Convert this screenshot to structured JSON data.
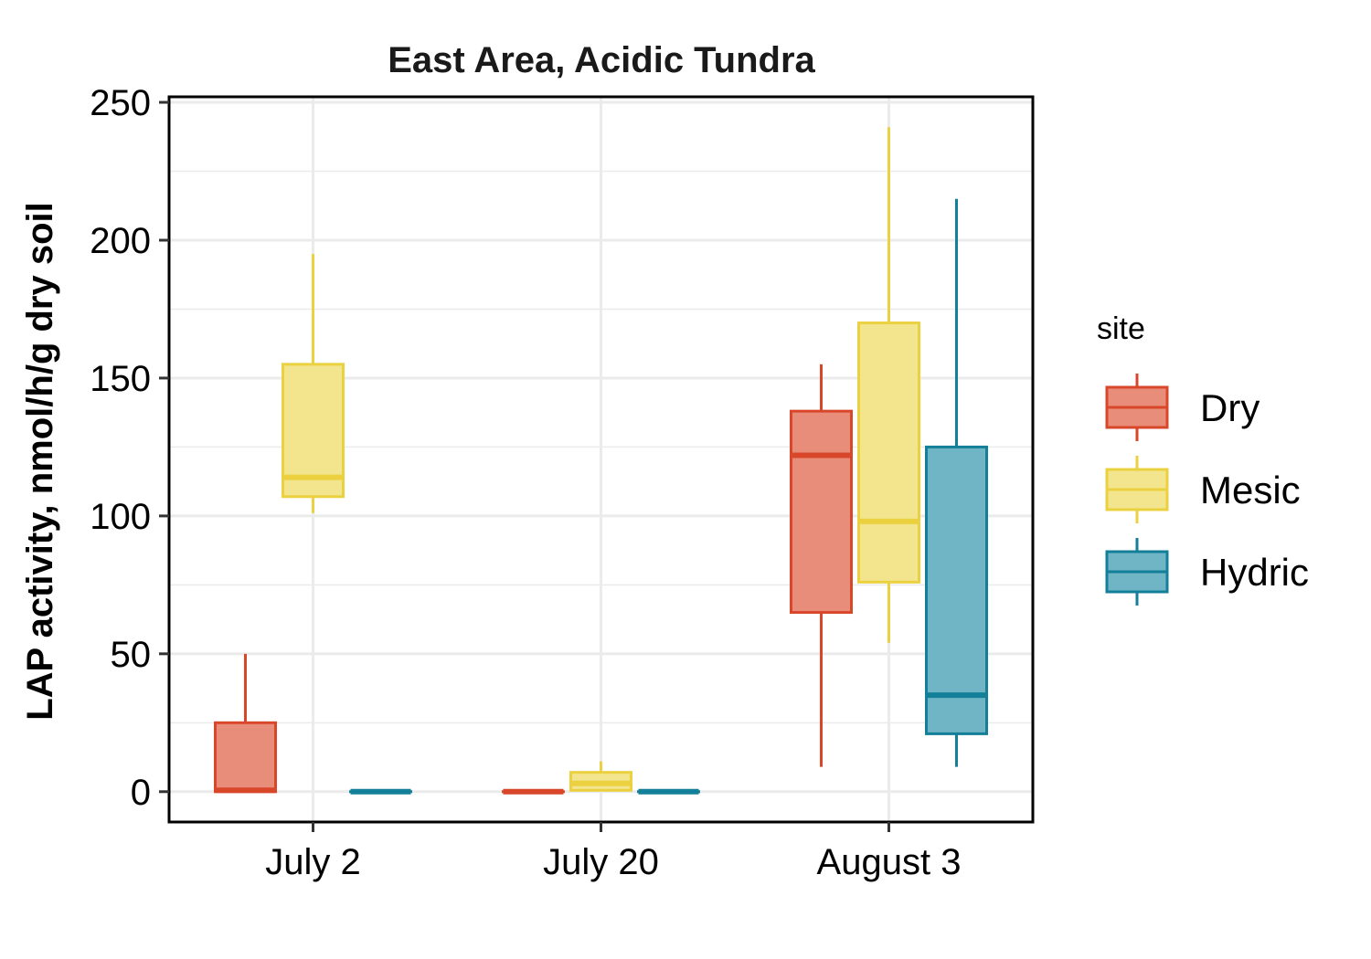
{
  "chart_data": {
    "type": "boxplot",
    "title": "East Area, Acidic Tundra",
    "xlabel": "",
    "ylabel": "LAP activity, nmol/h/g dry soil",
    "ylim": [
      -11,
      252
    ],
    "yticks": [
      0,
      50,
      100,
      150,
      200,
      250
    ],
    "grid": true,
    "legend_position": "right",
    "categories": [
      "July 2",
      "July 20",
      "August 3"
    ],
    "legend": {
      "title": "site",
      "entries": [
        "Dry",
        "Mesic",
        "Hydric"
      ]
    },
    "series": [
      {
        "name": "Dry",
        "color": "#d9472b",
        "fill": "#e98d7b",
        "boxes": [
          {
            "min": 0,
            "q1": 0,
            "median": 0.5,
            "q3": 25,
            "max": 50
          },
          {
            "min": 0,
            "q1": 0,
            "median": 0,
            "q3": 0,
            "max": 0
          },
          {
            "min": 9,
            "q1": 65,
            "median": 122,
            "q3": 138,
            "max": 155
          }
        ]
      },
      {
        "name": "Mesic",
        "color": "#ebd040",
        "fill": "#f3e58d",
        "boxes": [
          {
            "min": 101,
            "q1": 107,
            "median": 114,
            "q3": 155,
            "max": 195
          },
          {
            "min": 0.5,
            "q1": 0.5,
            "median": 3,
            "q3": 7,
            "max": 11
          },
          {
            "min": 54,
            "q1": 76,
            "median": 98,
            "q3": 170,
            "max": 241
          }
        ]
      },
      {
        "name": "Hydric",
        "color": "#137f99",
        "fill": "#6fb5c5",
        "boxes": [
          {
            "min": 0,
            "q1": 0,
            "median": 0,
            "q3": 0,
            "max": 0
          },
          {
            "min": 0,
            "q1": 0,
            "median": 0,
            "q3": 0,
            "max": 0
          },
          {
            "min": 9,
            "q1": 21,
            "median": 35,
            "q3": 125,
            "max": 215
          }
        ]
      }
    ]
  }
}
